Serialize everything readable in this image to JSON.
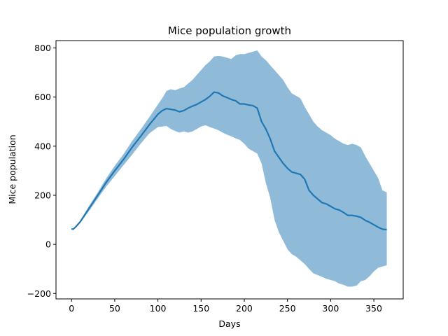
{
  "chart_data": {
    "type": "line",
    "title": "Mice population growth",
    "xlabel": "Days",
    "ylabel": "Mice population",
    "xlim": [
      -18,
      384
    ],
    "ylim": [
      -222,
      830
    ],
    "xticks": [
      0,
      50,
      100,
      150,
      200,
      250,
      300,
      350
    ],
    "yticks": [
      -200,
      0,
      200,
      400,
      600,
      800
    ],
    "grid": false,
    "line_color": "#1f77b4",
    "band_color": "#8fbbd9",
    "series": [
      {
        "x": [
          0,
          2,
          5,
          10,
          20,
          30,
          40,
          50,
          60,
          70,
          80,
          90,
          100,
          105,
          110,
          115,
          120,
          125,
          130,
          135,
          140,
          145,
          150,
          155,
          160,
          165,
          170,
          175,
          180,
          185,
          190,
          195,
          200,
          205,
          210,
          215,
          220,
          225,
          230,
          235,
          240,
          245,
          250,
          255,
          260,
          265,
          270,
          275,
          280,
          285,
          290,
          295,
          300,
          305,
          310,
          315,
          320,
          325,
          330,
          335,
          340,
          345,
          350,
          355,
          360,
          365
        ],
        "mean": [
          63,
          62,
          72,
          92,
          145,
          198,
          252,
          300,
          345,
          395,
          440,
          487,
          530,
          545,
          553,
          550,
          547,
          540,
          545,
          555,
          563,
          570,
          580,
          590,
          603,
          620,
          617,
          605,
          598,
          590,
          585,
          572,
          572,
          568,
          565,
          555,
          500,
          470,
          430,
          380,
          355,
          330,
          310,
          295,
          290,
          285,
          265,
          220,
          200,
          185,
          170,
          165,
          155,
          145,
          140,
          130,
          118,
          118,
          115,
          110,
          98,
          90,
          80,
          70,
          62,
          60
        ],
        "upper": [
          65,
          65,
          75,
          97,
          155,
          210,
          268,
          320,
          367,
          420,
          468,
          518,
          570,
          595,
          625,
          632,
          628,
          635,
          640,
          655,
          670,
          690,
          710,
          730,
          745,
          765,
          768,
          765,
          760,
          755,
          770,
          775,
          775,
          780,
          785,
          790,
          765,
          750,
          730,
          710,
          690,
          670,
          640,
          615,
          605,
          595,
          560,
          530,
          500,
          480,
          465,
          455,
          445,
          430,
          420,
          410,
          405,
          410,
          405,
          395,
          360,
          330,
          300,
          270,
          220,
          212
        ],
        "lower": [
          60,
          60,
          68,
          87,
          135,
          185,
          235,
          278,
          322,
          365,
          410,
          452,
          478,
          480,
          482,
          470,
          462,
          455,
          460,
          455,
          460,
          470,
          480,
          485,
          478,
          472,
          465,
          455,
          447,
          440,
          432,
          425,
          410,
          390,
          380,
          370,
          330,
          250,
          190,
          100,
          50,
          15,
          -20,
          -40,
          -50,
          -65,
          -80,
          -100,
          -118,
          -125,
          -132,
          -140,
          -145,
          -150,
          -160,
          -165,
          -172,
          -172,
          -168,
          -150,
          -145,
          -130,
          -110,
          -95,
          -90,
          -85
        ]
      }
    ]
  }
}
